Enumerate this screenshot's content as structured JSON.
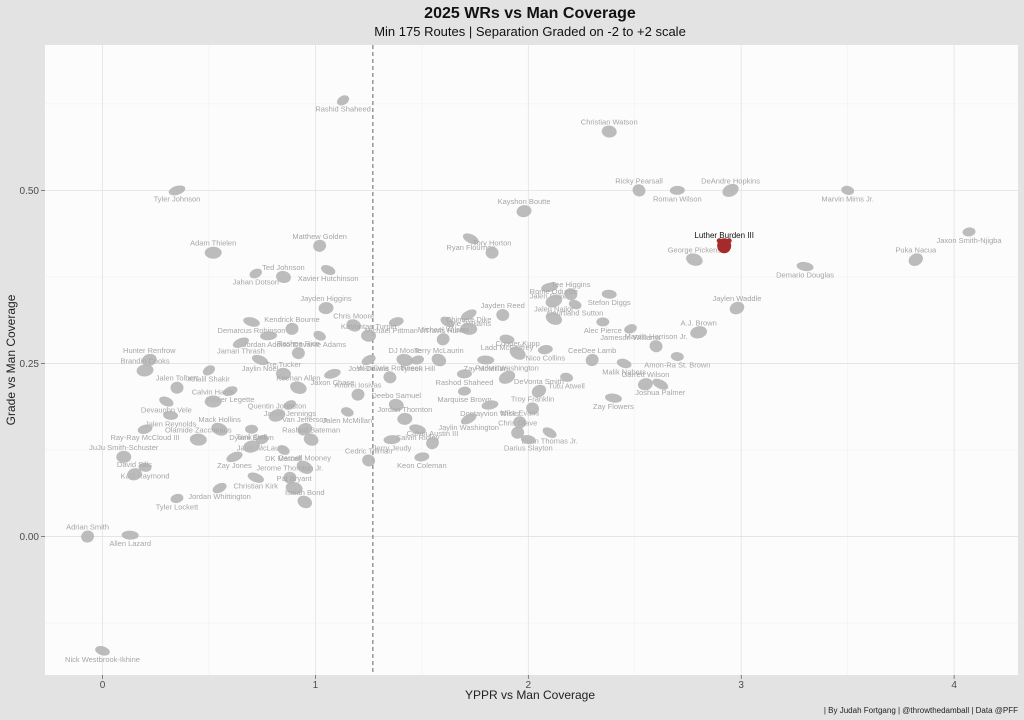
{
  "chart_data": {
    "type": "scatter",
    "title": "2025 WRs vs Man Coverage",
    "subtitle": "Min 175 Routes | Separation Graded on -2 to +2 scale",
    "xlabel": "YPPR vs Man Coverage",
    "ylabel": "Grade vs Man Coverage",
    "caption": "| By Judah Fortgang | @throwthedamball | Data @PFF",
    "xlim": [
      -0.27,
      4.3
    ],
    "ylim": [
      -0.2,
      0.71
    ],
    "x_ticks": [
      0,
      1,
      2,
      3,
      4
    ],
    "x_tick_labels": [
      "0",
      "1",
      "2",
      "3",
      "4"
    ],
    "y_ticks": [
      0,
      0.25,
      0.5
    ],
    "y_tick_labels": [
      "0.00",
      "0.25",
      "0.50"
    ],
    "vline_x": 1.27,
    "grid": true,
    "point_color": "#b5b5b5",
    "highlight_color": "#a52a2a",
    "points": [
      {
        "name": "Rashid Shaheed",
        "x": 1.13,
        "y": 0.63
      },
      {
        "name": "Christian Watson",
        "x": 2.38,
        "y": 0.585
      },
      {
        "name": "Tyler Johnson",
        "x": 0.35,
        "y": 0.5
      },
      {
        "name": "Ricky Pearsall",
        "x": 2.52,
        "y": 0.5
      },
      {
        "name": "Roman Wilson",
        "x": 2.7,
        "y": 0.5
      },
      {
        "name": "DeAndre Hopkins",
        "x": 2.95,
        "y": 0.5
      },
      {
        "name": "Marvin Mims Jr.",
        "x": 3.5,
        "y": 0.5
      },
      {
        "name": "Kayshon Boutte",
        "x": 1.98,
        "y": 0.47
      },
      {
        "name": "Ryan Flournoy",
        "x": 1.73,
        "y": 0.43
      },
      {
        "name": "Tory Horton",
        "x": 1.83,
        "y": 0.41
      },
      {
        "name": "Luther Burden III",
        "x": 2.92,
        "y": 0.42,
        "highlight": true
      },
      {
        "name": "George Pickens",
        "x": 2.78,
        "y": 0.4
      },
      {
        "name": "Jaxon Smith-Njigba",
        "x": 4.07,
        "y": 0.44
      },
      {
        "name": "Puka Nacua",
        "x": 3.82,
        "y": 0.4
      },
      {
        "name": "Demario Douglas",
        "x": 3.3,
        "y": 0.39
      },
      {
        "name": "Matthew Golden",
        "x": 1.02,
        "y": 0.42
      },
      {
        "name": "Xavier Hutchinson",
        "x": 1.06,
        "y": 0.385
      },
      {
        "name": "Adam Thielen",
        "x": 0.52,
        "y": 0.41
      },
      {
        "name": "Jahan Dotson",
        "x": 0.72,
        "y": 0.38
      },
      {
        "name": "Ted Johnson",
        "x": 0.85,
        "y": 0.375
      },
      {
        "name": "Jalen Coker",
        "x": 2.1,
        "y": 0.36
      },
      {
        "name": "Tee Higgins",
        "x": 2.2,
        "y": 0.35
      },
      {
        "name": "Stefon Diggs",
        "x": 2.38,
        "y": 0.35
      },
      {
        "name": "Rome Odunze",
        "x": 2.12,
        "y": 0.34
      },
      {
        "name": "Courtland Sutton",
        "x": 2.22,
        "y": 0.335
      },
      {
        "name": "Jayden Higgins",
        "x": 1.05,
        "y": 0.33
      },
      {
        "name": "Kyle Williams",
        "x": 1.72,
        "y": 0.32
      },
      {
        "name": "Jayden Reed",
        "x": 1.88,
        "y": 0.32
      },
      {
        "name": "Michael Pittman Jr.",
        "x": 1.38,
        "y": 0.31
      },
      {
        "name": "Jalen Nailor",
        "x": 2.12,
        "y": 0.315
      },
      {
        "name": "Alec Pierce",
        "x": 2.35,
        "y": 0.31
      },
      {
        "name": "Jaylen Waddle",
        "x": 2.98,
        "y": 0.33
      },
      {
        "name": "Demarcus Robinson",
        "x": 0.7,
        "y": 0.31
      },
      {
        "name": "Kendrick Bourne",
        "x": 0.89,
        "y": 0.3
      },
      {
        "name": "Travis Hunter",
        "x": 1.62,
        "y": 0.31
      },
      {
        "name": "Chimere Dike",
        "x": 1.72,
        "y": 0.3
      },
      {
        "name": "Jameson Williams",
        "x": 2.48,
        "y": 0.3
      },
      {
        "name": "Chris Moore",
        "x": 1.18,
        "y": 0.305
      },
      {
        "name": "Jordan Addison",
        "x": 0.78,
        "y": 0.29
      },
      {
        "name": "Michael Wilson",
        "x": 1.6,
        "y": 0.285
      },
      {
        "name": "Ladd McCaffrey",
        "x": 1.9,
        "y": 0.285
      },
      {
        "name": "A.J. Brown",
        "x": 2.8,
        "y": 0.295
      },
      {
        "name": "Davante Adams",
        "x": 1.02,
        "y": 0.29
      },
      {
        "name": "KaVontae Turpin",
        "x": 1.25,
        "y": 0.29
      },
      {
        "name": "Jamari Thrash",
        "x": 0.65,
        "y": 0.28
      },
      {
        "name": "Marvin Harrison Jr.",
        "x": 2.6,
        "y": 0.275
      },
      {
        "name": "Nico Collins",
        "x": 2.08,
        "y": 0.27
      },
      {
        "name": "Cooper Kupp",
        "x": 1.95,
        "y": 0.265
      },
      {
        "name": "Amon-Ra St. Brown",
        "x": 2.7,
        "y": 0.26
      },
      {
        "name": "Hunter Renfrow",
        "x": 0.22,
        "y": 0.255
      },
      {
        "name": "Jaylin Noel",
        "x": 0.74,
        "y": 0.255
      },
      {
        "name": "Rashee Rice",
        "x": 0.92,
        "y": 0.265
      },
      {
        "name": "Josh Downs",
        "x": 1.25,
        "y": 0.255
      },
      {
        "name": "DJ Moore",
        "x": 1.42,
        "y": 0.255
      },
      {
        "name": "Tyreek Hill",
        "x": 1.48,
        "y": 0.255
      },
      {
        "name": "Terry McLaurin",
        "x": 1.58,
        "y": 0.255
      },
      {
        "name": "Zay McMillan",
        "x": 1.8,
        "y": 0.255
      },
      {
        "name": "CeeDee Lamb",
        "x": 2.3,
        "y": 0.255
      },
      {
        "name": "Malik Nabers",
        "x": 2.45,
        "y": 0.25
      },
      {
        "name": "Brandin Cooks",
        "x": 0.2,
        "y": 0.24
      },
      {
        "name": "Khalil Shakir",
        "x": 0.5,
        "y": 0.24
      },
      {
        "name": "Tre Tucker",
        "x": 0.85,
        "y": 0.235
      },
      {
        "name": "Jaxon Chase",
        "x": 1.08,
        "y": 0.235
      },
      {
        "name": "Wan'Dale Robinson",
        "x": 1.35,
        "y": 0.23
      },
      {
        "name": "Rashod Shaheed",
        "x": 1.7,
        "y": 0.235
      },
      {
        "name": "Parker Washington",
        "x": 1.9,
        "y": 0.23
      },
      {
        "name": "Tutu Atwell",
        "x": 2.18,
        "y": 0.23
      },
      {
        "name": "Garrett Wilson",
        "x": 2.55,
        "y": 0.22
      },
      {
        "name": "Joshua Palmer",
        "x": 2.62,
        "y": 0.22
      },
      {
        "name": "Jalen Tolbert",
        "x": 0.35,
        "y": 0.215
      },
      {
        "name": "Xavier Legette",
        "x": 0.6,
        "y": 0.21
      },
      {
        "name": "Keenan Allen",
        "x": 0.92,
        "y": 0.215
      },
      {
        "name": "Marquise Brown",
        "x": 1.7,
        "y": 0.21
      },
      {
        "name": "DeVonta Smith",
        "x": 2.05,
        "y": 0.21
      },
      {
        "name": "Zay Flowers",
        "x": 2.4,
        "y": 0.2
      },
      {
        "name": "Andrei Iosivas",
        "x": 1.2,
        "y": 0.205
      },
      {
        "name": "Devaughn Vele",
        "x": 0.3,
        "y": 0.195
      },
      {
        "name": "Calvin Harris",
        "x": 0.52,
        "y": 0.195
      },
      {
        "name": "Jauan Jennings",
        "x": 0.88,
        "y": 0.19
      },
      {
        "name": "Deebo Samuel",
        "x": 1.38,
        "y": 0.19
      },
      {
        "name": "Dontayvion Wicks",
        "x": 1.82,
        "y": 0.19
      },
      {
        "name": "Troy Franklin",
        "x": 2.02,
        "y": 0.185
      },
      {
        "name": "Jalen Reynolds",
        "x": 0.32,
        "y": 0.175
      },
      {
        "name": "Quentin Johnston",
        "x": 0.82,
        "y": 0.175
      },
      {
        "name": "Jalen McMillan",
        "x": 1.15,
        "y": 0.18
      },
      {
        "name": "Jordan Thornton",
        "x": 1.42,
        "y": 0.17
      },
      {
        "name": "Jaylin Washington",
        "x": 1.72,
        "y": 0.17
      },
      {
        "name": "Mike Evans",
        "x": 1.96,
        "y": 0.165
      },
      {
        "name": "Ray-Ray McCloud III",
        "x": 0.2,
        "y": 0.155
      },
      {
        "name": "Mack Hollins",
        "x": 0.55,
        "y": 0.155
      },
      {
        "name": "Dyami Brown",
        "x": 0.7,
        "y": 0.155
      },
      {
        "name": "Van Jefferson",
        "x": 0.95,
        "y": 0.155
      },
      {
        "name": "Calvin Ridley",
        "x": 1.48,
        "y": 0.155
      },
      {
        "name": "Chris Olave",
        "x": 1.95,
        "y": 0.15
      },
      {
        "name": "Brian Thomas Jr.",
        "x": 2.1,
        "y": 0.15
      },
      {
        "name": "Olamide Zaccheaus",
        "x": 0.45,
        "y": 0.14
      },
      {
        "name": "Jalen McLaurin",
        "x": 0.75,
        "y": 0.14
      },
      {
        "name": "Rashod Bateman",
        "x": 0.98,
        "y": 0.14
      },
      {
        "name": "Jerry Jeudy",
        "x": 1.36,
        "y": 0.14
      },
      {
        "name": "Calvin Austin III",
        "x": 1.55,
        "y": 0.135
      },
      {
        "name": "Darius Slayton",
        "x": 2.0,
        "y": 0.14
      },
      {
        "name": "Tank Dell",
        "x": 0.7,
        "y": 0.13
      },
      {
        "name": "DK Metcalf",
        "x": 0.85,
        "y": 0.125
      },
      {
        "name": "JuJu Smith-Schuster",
        "x": 0.1,
        "y": 0.115
      },
      {
        "name": "Zay Jones",
        "x": 0.62,
        "y": 0.115
      },
      {
        "name": "Cedric Tillman",
        "x": 1.25,
        "y": 0.11
      },
      {
        "name": "Keon Coleman",
        "x": 1.5,
        "y": 0.115
      },
      {
        "name": "Darnell Mooney",
        "x": 0.95,
        "y": 0.1
      },
      {
        "name": "Kalif Raymond",
        "x": 0.2,
        "y": 0.1
      },
      {
        "name": "David Sills",
        "x": 0.15,
        "y": 0.09
      },
      {
        "name": "Christian Kirk",
        "x": 0.72,
        "y": 0.085
      },
      {
        "name": "Jerome Thornton Jr.",
        "x": 0.88,
        "y": 0.085
      },
      {
        "name": "Jordan Whittington",
        "x": 0.55,
        "y": 0.07
      },
      {
        "name": "Pat Bryant",
        "x": 0.9,
        "y": 0.07
      },
      {
        "name": "Tyler Lockett",
        "x": 0.35,
        "y": 0.055
      },
      {
        "name": "Isaiah Bond",
        "x": 0.95,
        "y": 0.05
      },
      {
        "name": "Allen Lazard",
        "x": 0.13,
        "y": 0.002
      },
      {
        "name": "Adrian Smith",
        "x": -0.07,
        "y": 0.0
      },
      {
        "name": "Nick Westbrook-Ikhine",
        "x": 0.0,
        "y": -0.165
      }
    ]
  }
}
